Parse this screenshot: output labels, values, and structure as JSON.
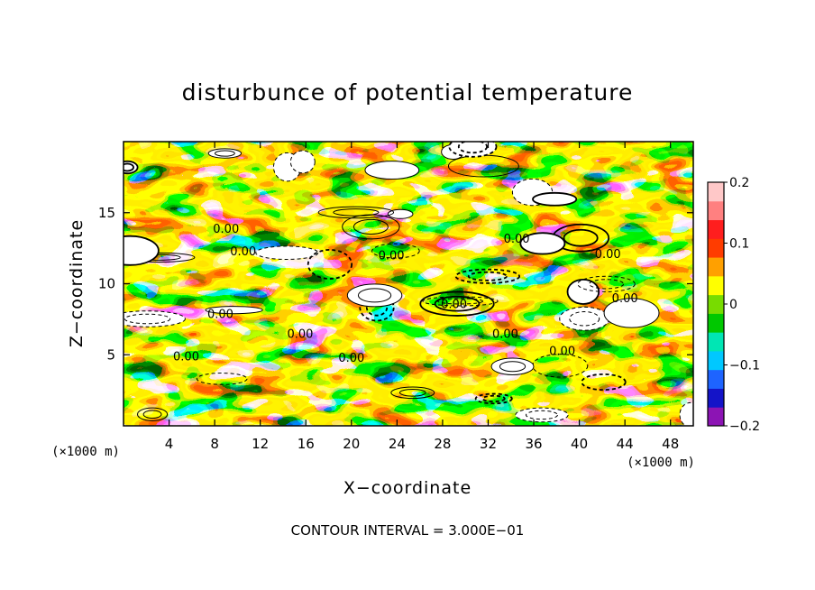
{
  "chart_data": {
    "type": "heatmap",
    "title": "disturbunce of potential temperature",
    "xlabel": "X−coordinate",
    "ylabel": "Z−coordinate",
    "x_unit": "(×1000 m)",
    "y_unit": "(×1000 m)",
    "xlim": [
      0,
      50
    ],
    "ylim": [
      0,
      20
    ],
    "x_ticks": [
      4,
      8,
      12,
      16,
      20,
      24,
      28,
      32,
      36,
      40,
      44,
      48
    ],
    "x_tick_labels": [
      "4",
      "8",
      "12",
      "16",
      "20",
      "24",
      "28",
      "32",
      "36",
      "40",
      "44",
      "48"
    ],
    "y_ticks": [
      5,
      10,
      15
    ],
    "y_tick_labels": [
      "5",
      "10",
      "15"
    ],
    "colorbar": {
      "range": [
        -0.2,
        0.2
      ],
      "ticks": [
        0.2,
        0.1,
        0,
        -0.1,
        -0.2
      ],
      "tick_labels": [
        "0.2",
        "0.1",
        "0",
        "−0.1",
        "−0.2"
      ],
      "colors": [
        "#8c14b4",
        "#1414c8",
        "#1e64ff",
        "#00c8ff",
        "#00e6b4",
        "#00c800",
        "#78dc00",
        "#ffff00",
        "#ffa000",
        "#ff3c00",
        "#ff1e1e",
        "#ff8080",
        "#ffc8c8"
      ]
    },
    "contour_interval_text": "CONTOUR INTERVAL = 3.000E−01",
    "contour_labels": [
      {
        "text": "0.00",
        "x": 9.0,
        "z": 13.6
      },
      {
        "text": "0.00",
        "x": 10.5,
        "z": 12.0
      },
      {
        "text": "0.00",
        "x": 23.5,
        "z": 11.7
      },
      {
        "text": "0.00",
        "x": 34.5,
        "z": 12.9
      },
      {
        "text": "0.00",
        "x": 42.5,
        "z": 11.8
      },
      {
        "text": "0.00",
        "x": 44.0,
        "z": 8.7
      },
      {
        "text": "0.00",
        "x": 29.0,
        "z": 8.3
      },
      {
        "text": "0.00",
        "x": 8.5,
        "z": 7.6
      },
      {
        "text": "0.00",
        "x": 15.5,
        "z": 6.2
      },
      {
        "text": "0.00",
        "x": 33.5,
        "z": 6.2
      },
      {
        "text": "0.00",
        "x": 38.5,
        "z": 5.0
      },
      {
        "text": "0.00",
        "x": 20.0,
        "z": 4.5
      },
      {
        "text": "0.00",
        "x": 5.5,
        "z": 4.6
      }
    ]
  }
}
